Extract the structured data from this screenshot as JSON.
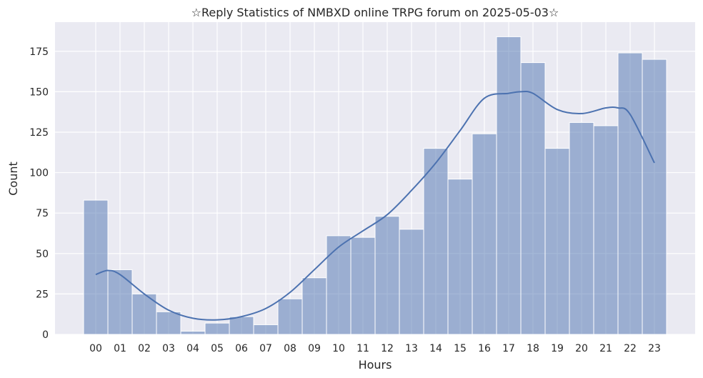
{
  "chart_data": {
    "type": "bar",
    "title": "☆Reply Statistics of NMBXD online TRPG forum on 2025-05-03☆",
    "xlabel": "Hours",
    "ylabel": "Count",
    "categories": [
      "00",
      "01",
      "02",
      "03",
      "04",
      "05",
      "06",
      "07",
      "08",
      "09",
      "10",
      "11",
      "12",
      "13",
      "14",
      "15",
      "16",
      "17",
      "18",
      "19",
      "20",
      "21",
      "22",
      "23"
    ],
    "values": [
      83,
      40,
      25,
      14,
      2,
      7,
      11,
      6,
      22,
      35,
      61,
      60,
      73,
      65,
      115,
      96,
      124,
      184,
      168,
      115,
      131,
      129,
      174,
      170
    ],
    "y_ticks": [
      0,
      25,
      50,
      75,
      100,
      125,
      150,
      175
    ],
    "ylim": [
      0,
      193
    ],
    "kde": {
      "x": [
        0,
        0.5,
        1,
        2,
        3,
        4,
        5,
        6,
        7,
        8,
        9,
        10,
        11,
        12,
        13,
        14,
        15,
        16,
        17,
        17.5,
        18,
        19,
        20,
        21,
        21.5,
        22,
        23
      ],
      "y": [
        37,
        39.5,
        37,
        25,
        15,
        10,
        9,
        11,
        16,
        26,
        40,
        54,
        64,
        74,
        89,
        106,
        126,
        146,
        149,
        150,
        149,
        139,
        136.5,
        140,
        140,
        136,
        106
      ]
    },
    "grid": true,
    "colors": {
      "bar_fill": "#4c72b0",
      "bar_opacity": 0.5,
      "line": "#4c72b0",
      "background": "#eaeaf2",
      "grid": "#ffffff"
    }
  }
}
